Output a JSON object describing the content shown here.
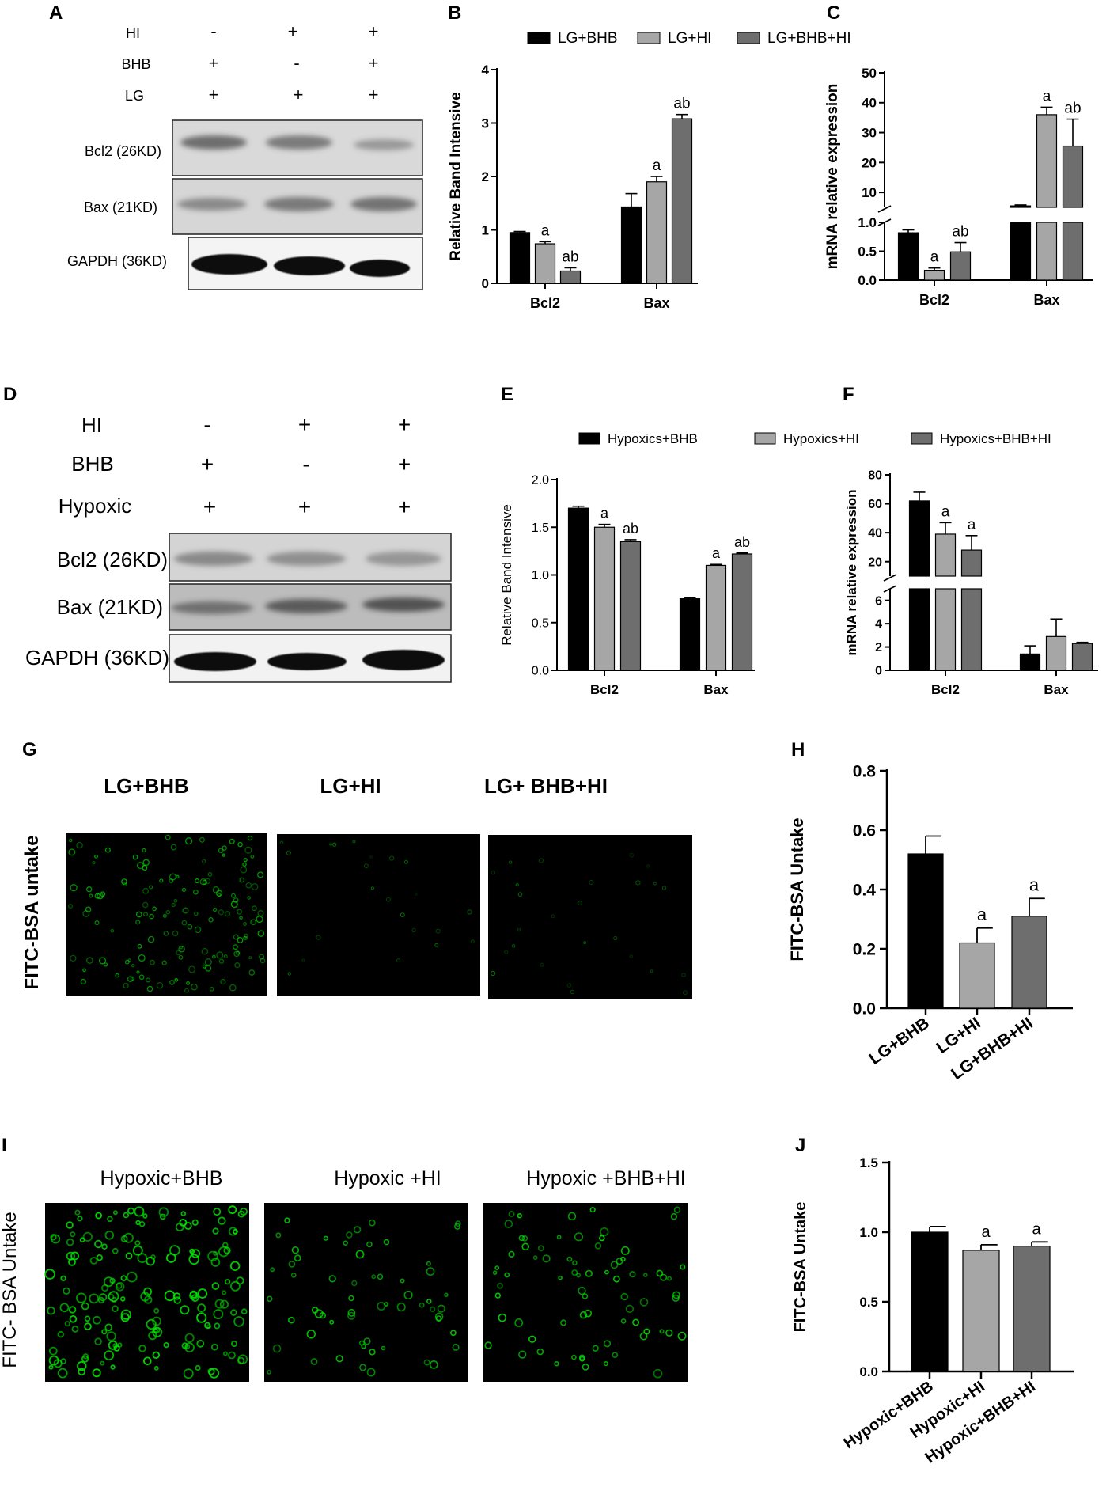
{
  "panel_letters": [
    "A",
    "B",
    "C",
    "D",
    "E",
    "F",
    "G",
    "H",
    "I",
    "J"
  ],
  "colors": {
    "bar1": "#000000",
    "bar2": "#a6a6a6",
    "bar3": "#6e6e6e",
    "fluor": "#00e000"
  },
  "blot_A": {
    "treatments": [
      {
        "label": "HI",
        "marks": [
          "-",
          "+",
          "+"
        ]
      },
      {
        "label": "BHB",
        "marks": [
          "+",
          "-",
          "+"
        ]
      },
      {
        "label": "LG",
        "marks": [
          "+",
          "+",
          "+"
        ]
      }
    ],
    "proteins": [
      "Bcl2 (26KD)",
      "Bax (21KD)",
      "GAPDH (36KD)"
    ]
  },
  "blot_D": {
    "treatments": [
      {
        "label": "HI",
        "marks": [
          "-",
          "+",
          "+"
        ]
      },
      {
        "label": "BHB",
        "marks": [
          "+",
          "-",
          "+"
        ]
      },
      {
        "label": "Hypoxic",
        "marks": [
          "+",
          "+",
          "+"
        ]
      }
    ],
    "proteins": [
      "Bcl2 (26KD)",
      "Bax (21KD)",
      "GAPDH (36KD)"
    ]
  },
  "micro_G": {
    "row_label": "FITC-BSA untake",
    "titles": [
      "LG+BHB",
      "LG+HI",
      "LG+ BHB+HI"
    ]
  },
  "micro_I": {
    "row_label": "FITC- BSA Untake",
    "titles": [
      "Hypoxic+BHB",
      "Hypoxic +HI",
      "Hypoxic +BHB+HI"
    ]
  },
  "chart_data": [
    {
      "panel": "B",
      "type": "bar",
      "ylabel": "Relative Band Intensive",
      "categories": [
        "Bcl2",
        "Bax"
      ],
      "series": [
        {
          "name": "LG+BHB",
          "values": [
            0.95,
            1.43
          ],
          "errors": [
            0.02,
            0.25
          ],
          "labels": [
            "",
            ""
          ]
        },
        {
          "name": "LG+HI",
          "values": [
            0.74,
            1.9
          ],
          "errors": [
            0.04,
            0.1
          ],
          "labels": [
            "a",
            "a"
          ]
        },
        {
          "name": "LG+BHB+HI",
          "values": [
            0.23,
            3.08
          ],
          "errors": [
            0.06,
            0.08
          ],
          "labels": [
            "ab",
            "ab"
          ]
        }
      ],
      "ylim": [
        0,
        4
      ],
      "yticks": [
        0,
        1,
        2,
        3,
        4
      ],
      "legend": "top"
    },
    {
      "panel": "C",
      "type": "bar",
      "ylabel": "mRNA relative expression",
      "categories": [
        "Bcl2",
        "Bax"
      ],
      "series": [
        {
          "name": "LG+BHB",
          "values": [
            0.82,
            5.5
          ],
          "errors": [
            0.05,
            0.3
          ],
          "labels": [
            "",
            ""
          ]
        },
        {
          "name": "LG+HI",
          "values": [
            0.17,
            36.0
          ],
          "errors": [
            0.04,
            2.5
          ],
          "labels": [
            "a",
            "a"
          ]
        },
        {
          "name": "LG+BHB+HI",
          "values": [
            0.49,
            25.5
          ],
          "errors": [
            0.16,
            9.0
          ],
          "labels": [
            "ab",
            "ab"
          ]
        }
      ],
      "broken_axis": {
        "lower": [
          0,
          1.0
        ],
        "lower_ticks": [
          "0.0",
          "0.5",
          "1.0"
        ],
        "upper": [
          5,
          50
        ],
        "upper_ticks": [
          "10",
          "20",
          "30",
          "40",
          "50"
        ]
      }
    },
    {
      "panel": "E",
      "type": "bar",
      "ylabel": "Relative Band Intensive",
      "categories": [
        "Bcl2",
        "Bax"
      ],
      "series": [
        {
          "name": "Hypoxics+BHB",
          "values": [
            1.7,
            0.75
          ],
          "errors": [
            0.02,
            0.01
          ],
          "labels": [
            "",
            ""
          ]
        },
        {
          "name": "Hypoxics+HI",
          "values": [
            1.5,
            1.1
          ],
          "errors": [
            0.03,
            0.01
          ],
          "labels": [
            "a",
            "a"
          ]
        },
        {
          "name": "Hypoxics+BHB+HI",
          "values": [
            1.35,
            1.22
          ],
          "errors": [
            0.02,
            0.01
          ],
          "labels": [
            "ab",
            "ab"
          ]
        }
      ],
      "ylim": [
        0,
        2.0
      ],
      "yticks": [
        "0.0",
        "0.5",
        "1.0",
        "1.5",
        "2.0"
      ],
      "legend": "top"
    },
    {
      "panel": "F",
      "type": "bar",
      "ylabel": "mRNA relative expression",
      "categories": [
        "Bcl2",
        "Bax"
      ],
      "series": [
        {
          "name": "Hypoxics+BHB",
          "values": [
            62,
            1.4
          ],
          "errors": [
            6,
            0.7
          ],
          "labels": [
            "",
            ""
          ]
        },
        {
          "name": "Hypoxics+HI",
          "values": [
            39,
            2.9
          ],
          "errors": [
            8,
            1.5
          ],
          "labels": [
            "a",
            ""
          ]
        },
        {
          "name": "Hypoxics+BHB+HI",
          "values": [
            28,
            2.3
          ],
          "errors": [
            10,
            0.1
          ],
          "labels": [
            "a",
            ""
          ]
        }
      ],
      "broken_axis": {
        "lower": [
          0,
          7
        ],
        "lower_ticks": [
          "0",
          "2",
          "4",
          "6"
        ],
        "upper": [
          10,
          80
        ],
        "upper_ticks": [
          "20",
          "40",
          "60",
          "80"
        ]
      }
    },
    {
      "panel": "H",
      "type": "bar",
      "ylabel": "FITC-BSA Untake",
      "categories": [
        "LG+BHB",
        "LG+HI",
        "LG+BHB+HI"
      ],
      "values": [
        0.52,
        0.22,
        0.31
      ],
      "errors": [
        0.06,
        0.05,
        0.06
      ],
      "labels": [
        "",
        "a",
        "a"
      ],
      "ylim": [
        0,
        0.8
      ],
      "yticks": [
        "0.0",
        "0.2",
        "0.4",
        "0.6",
        "0.8"
      ]
    },
    {
      "panel": "J",
      "type": "bar",
      "ylabel": "FITC-BSA Untake",
      "categories": [
        "Hypoxic+BHB",
        "Hypoxic+HI",
        "Hypoxic+BHB+HI"
      ],
      "values": [
        1.0,
        0.87,
        0.9
      ],
      "errors": [
        0.04,
        0.04,
        0.03
      ],
      "labels": [
        "",
        "a",
        "a"
      ],
      "ylim": [
        0,
        1.5
      ],
      "yticks": [
        "0.0",
        "0.5",
        "1.0",
        "1.5"
      ]
    }
  ]
}
